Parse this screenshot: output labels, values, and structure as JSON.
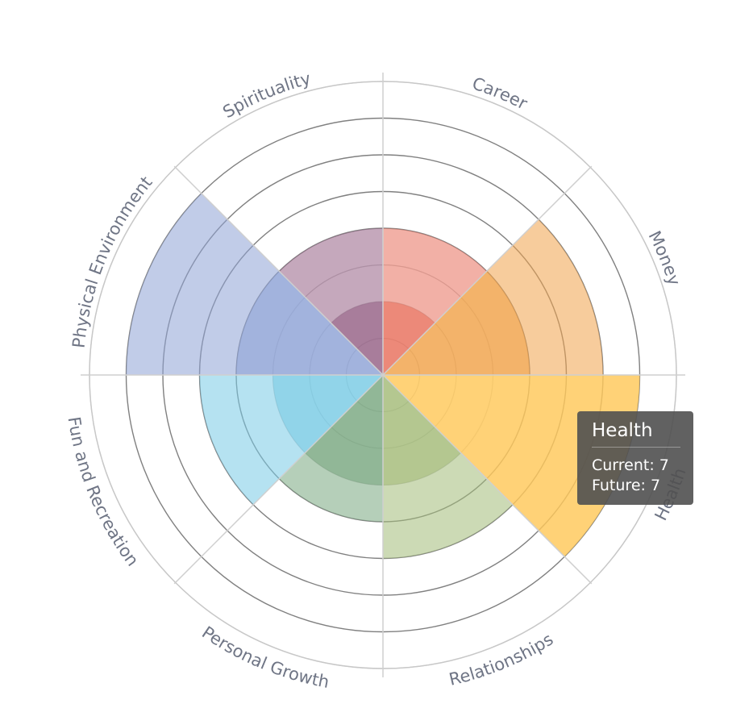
{
  "chart_data": {
    "type": "polar-area",
    "title": "",
    "r_max": 8,
    "categories": [
      "Career",
      "Money",
      "Health",
      "Relationships",
      "Personal Growth",
      "Fun and Recreation",
      "Physical Environment",
      "Spirituality"
    ],
    "series": [
      {
        "name": "Current",
        "values": [
          2,
          4,
          7,
          3,
          3,
          3,
          4,
          2
        ]
      },
      {
        "name": "Future",
        "values": [
          4,
          6,
          7,
          5,
          4,
          5,
          7,
          4
        ]
      }
    ],
    "colors": [
      "#e8705c",
      "#f0a24a",
      "#ffc85a",
      "#a3bb78",
      "#79a780",
      "#79cbe5",
      "#8ea2d6",
      "#956185"
    ]
  },
  "tooltip": {
    "title": "Health",
    "rows": [
      "Current: 7",
      "Future: 7"
    ]
  }
}
